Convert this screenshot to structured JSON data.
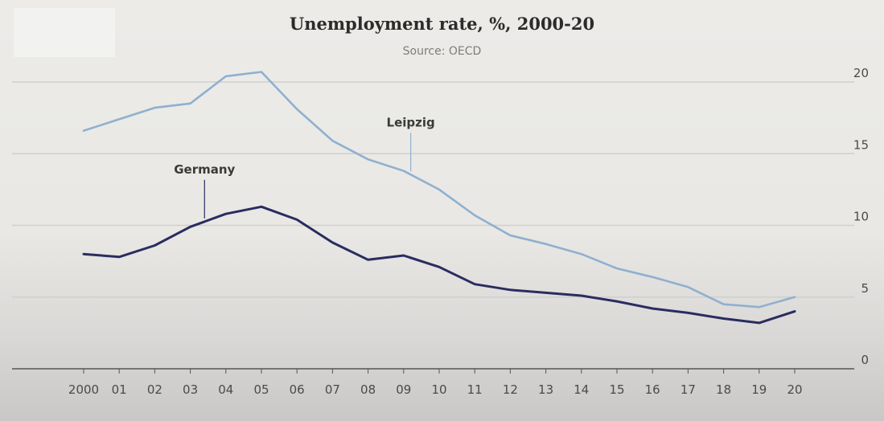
{
  "chart_data": {
    "type": "line",
    "title": "Unemployment rate, %, 2000-20",
    "subtitle": "Source: OECD",
    "x": [
      "2000",
      "01",
      "02",
      "03",
      "04",
      "05",
      "06",
      "07",
      "08",
      "09",
      "10",
      "11",
      "12",
      "13",
      "14",
      "15",
      "16",
      "17",
      "18",
      "19",
      "20"
    ],
    "ylim": [
      0,
      20
    ],
    "yticks": [
      0,
      5,
      10,
      15,
      20
    ],
    "grid": true,
    "series": [
      {
        "name": "Leipzig",
        "color": "#8fb0cf",
        "values": [
          16.6,
          17.4,
          18.2,
          18.5,
          20.4,
          20.7,
          18.1,
          15.9,
          14.6,
          13.8,
          12.5,
          10.7,
          9.3,
          8.7,
          8.0,
          7.0,
          6.4,
          5.7,
          4.5,
          4.3,
          5.0
        ]
      },
      {
        "name": "Germany",
        "color": "#2a2c60",
        "values": [
          8.0,
          7.8,
          8.6,
          9.9,
          10.8,
          11.3,
          10.4,
          8.8,
          7.6,
          7.9,
          7.1,
          5.9,
          5.5,
          5.3,
          5.1,
          4.7,
          4.2,
          3.9,
          3.5,
          3.2,
          4.0
        ]
      }
    ],
    "annotations": [
      {
        "series": "Leipzig",
        "text": "Leipzig",
        "x_index": 9.2
      },
      {
        "series": "Germany",
        "text": "Germany",
        "x_index": 3.4
      }
    ]
  }
}
